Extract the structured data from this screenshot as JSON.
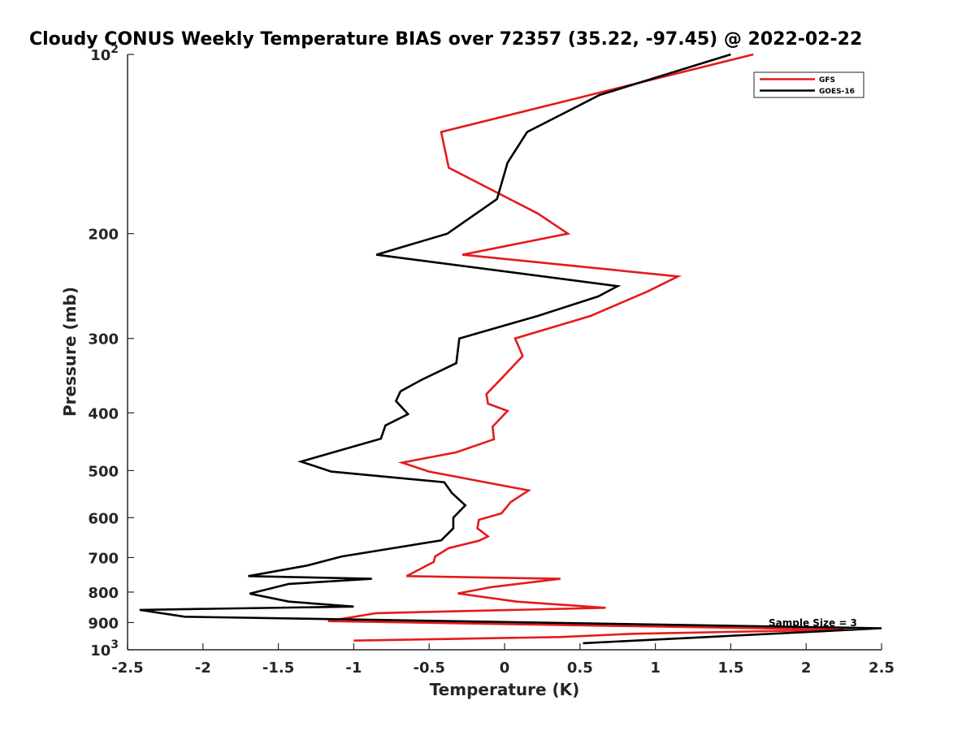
{
  "chart_data": {
    "type": "line",
    "title": "Cloudy CONUS Weekly Temperature BIAS over 72357 (35.22, -97.45) @ 2022-02-22",
    "xlabel": "Temperature (K)",
    "ylabel": "Pressure (mb)",
    "xlim": [
      -2.5,
      2.5
    ],
    "ylim": [
      100,
      1000
    ],
    "y_scale": "log",
    "y_reversed": true,
    "grid": false,
    "legend_position": "top-right",
    "x_ticks": [
      -2.5,
      -2,
      -1.5,
      -1,
      -0.5,
      0,
      0.5,
      1,
      1.5,
      2,
      2.5
    ],
    "x_tick_labels": [
      "-2.5",
      "-2",
      "-1.5",
      "-1",
      "-0.5",
      "0",
      "0.5",
      "1",
      "1.5",
      "2",
      "2.5"
    ],
    "y_ticks": [
      100,
      200,
      300,
      400,
      500,
      600,
      700,
      800,
      900,
      1000
    ],
    "y_tick_labels": [
      "10^2",
      "200",
      "300",
      "400",
      "500",
      "600",
      "700",
      "800",
      "900",
      "10^3"
    ],
    "annotation": "Sample Size = 3",
    "series": [
      {
        "name": "GFS",
        "color": "#e41a1c",
        "points": [
          [
            1.65,
            100
          ],
          [
            -0.42,
            135
          ],
          [
            -0.37,
            155
          ],
          [
            0.22,
            185
          ],
          [
            0.42,
            200
          ],
          [
            -0.28,
            217
          ],
          [
            1.15,
            236
          ],
          [
            0.95,
            250
          ],
          [
            0.57,
            275
          ],
          [
            0.07,
            300
          ],
          [
            0.12,
            321
          ],
          [
            -0.02,
            350
          ],
          [
            -0.12,
            372
          ],
          [
            -0.11,
            386
          ],
          [
            0.02,
            397
          ],
          [
            -0.08,
            422
          ],
          [
            -0.07,
            443
          ],
          [
            -0.32,
            466
          ],
          [
            -0.68,
            485
          ],
          [
            -0.5,
            502
          ],
          [
            0.16,
            540
          ],
          [
            0.04,
            565
          ],
          [
            -0.02,
            590
          ],
          [
            -0.17,
            605
          ],
          [
            -0.18,
            625
          ],
          [
            -0.11,
            645
          ],
          [
            -0.17,
            656
          ],
          [
            -0.37,
            675
          ],
          [
            -0.46,
            697
          ],
          [
            -0.47,
            712
          ],
          [
            -0.65,
            752
          ],
          [
            0.37,
            760
          ],
          [
            -0.09,
            785
          ],
          [
            -0.31,
            804
          ],
          [
            0.08,
            830
          ],
          [
            0.67,
            850
          ],
          [
            -0.85,
            868
          ],
          [
            -1.17,
            895
          ],
          [
            2.25,
            925
          ],
          [
            0.85,
            940
          ],
          [
            0.37,
            952
          ],
          [
            -1.0,
            965
          ]
        ]
      },
      {
        "name": "GOES-16",
        "color": "#000000",
        "points": [
          [
            1.5,
            100
          ],
          [
            0.63,
            117
          ],
          [
            0.15,
            135
          ],
          [
            0.02,
            152
          ],
          [
            -0.05,
            175
          ],
          [
            -0.38,
            200
          ],
          [
            -0.85,
            217
          ],
          [
            0.75,
            245
          ],
          [
            0.62,
            255
          ],
          [
            0.22,
            275
          ],
          [
            -0.3,
            300
          ],
          [
            -0.32,
            330
          ],
          [
            -0.55,
            352
          ],
          [
            -0.69,
            368
          ],
          [
            -0.72,
            382
          ],
          [
            -0.64,
            402
          ],
          [
            -0.79,
            420
          ],
          [
            -0.82,
            442
          ],
          [
            -1.35,
            483
          ],
          [
            -1.15,
            502
          ],
          [
            -0.4,
            523
          ],
          [
            -0.35,
            545
          ],
          [
            -0.26,
            572
          ],
          [
            -0.34,
            600
          ],
          [
            -0.34,
            625
          ],
          [
            -0.42,
            655
          ],
          [
            -1.08,
            697
          ],
          [
            -1.31,
            722
          ],
          [
            -1.7,
            752
          ],
          [
            -0.88,
            760
          ],
          [
            -1.43,
            775
          ],
          [
            -1.69,
            805
          ],
          [
            -1.43,
            830
          ],
          [
            -1.0,
            846
          ],
          [
            -2.42,
            857
          ],
          [
            -2.12,
            880
          ],
          [
            2.5,
            920
          ],
          [
            1.48,
            948
          ],
          [
            0.52,
            975
          ]
        ]
      }
    ]
  },
  "legend": {
    "items": [
      {
        "label": "GFS",
        "color": "#e41a1c"
      },
      {
        "label": "GOES-16",
        "color": "#000000"
      }
    ]
  }
}
